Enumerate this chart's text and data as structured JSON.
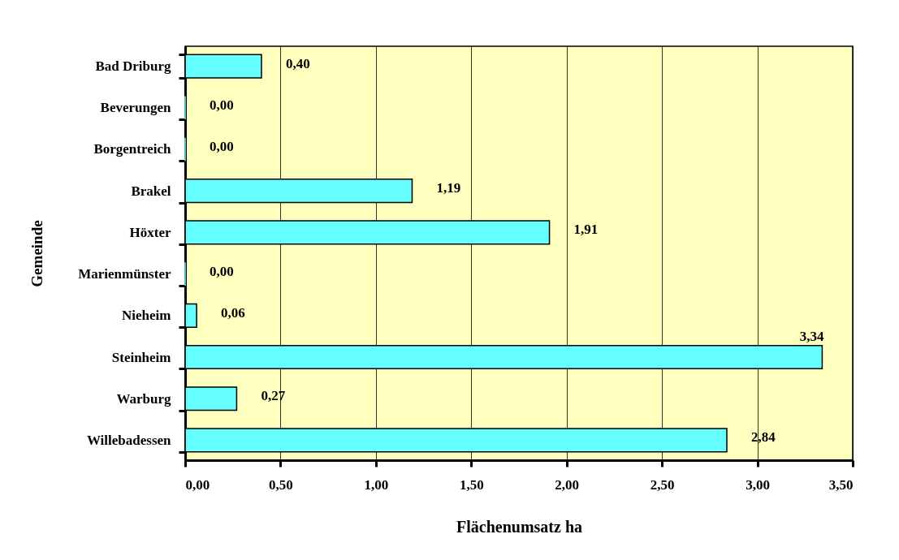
{
  "chart_data": {
    "type": "bar",
    "orientation": "horizontal",
    "categories": [
      "Bad Driburg",
      "Beverungen",
      "Borgentreich",
      "Brakel",
      "Höxter",
      "Marienmünster",
      "Nieheim",
      "Steinheim",
      "Warburg",
      "Willebadessen"
    ],
    "values": [
      0.4,
      0.0,
      0.0,
      1.19,
      1.91,
      0.0,
      0.06,
      3.34,
      0.27,
      2.84
    ],
    "value_labels": [
      "0,40",
      "0,00",
      "0,00",
      "1,19",
      "1,91",
      "0,00",
      "0,06",
      "3,34",
      "0,27",
      "2,84"
    ],
    "color": "#66ffff",
    "xlabel": "Flächenumsatz ha",
    "ylabel": "Gemeinde",
    "xlim": [
      0,
      3.5
    ],
    "xticks": [
      {
        "value": 0,
        "label": "0,00"
      },
      {
        "value": 0.5,
        "label": "0,50"
      },
      {
        "value": 1,
        "label": "1,00"
      },
      {
        "value": 1.5,
        "label": "1,50"
      },
      {
        "value": 2,
        "label": "2,00"
      },
      {
        "value": 2.5,
        "label": "2,50"
      },
      {
        "value": 3,
        "label": "3,00"
      },
      {
        "value": 3.5,
        "label": "3,50"
      }
    ],
    "grid": "x"
  }
}
